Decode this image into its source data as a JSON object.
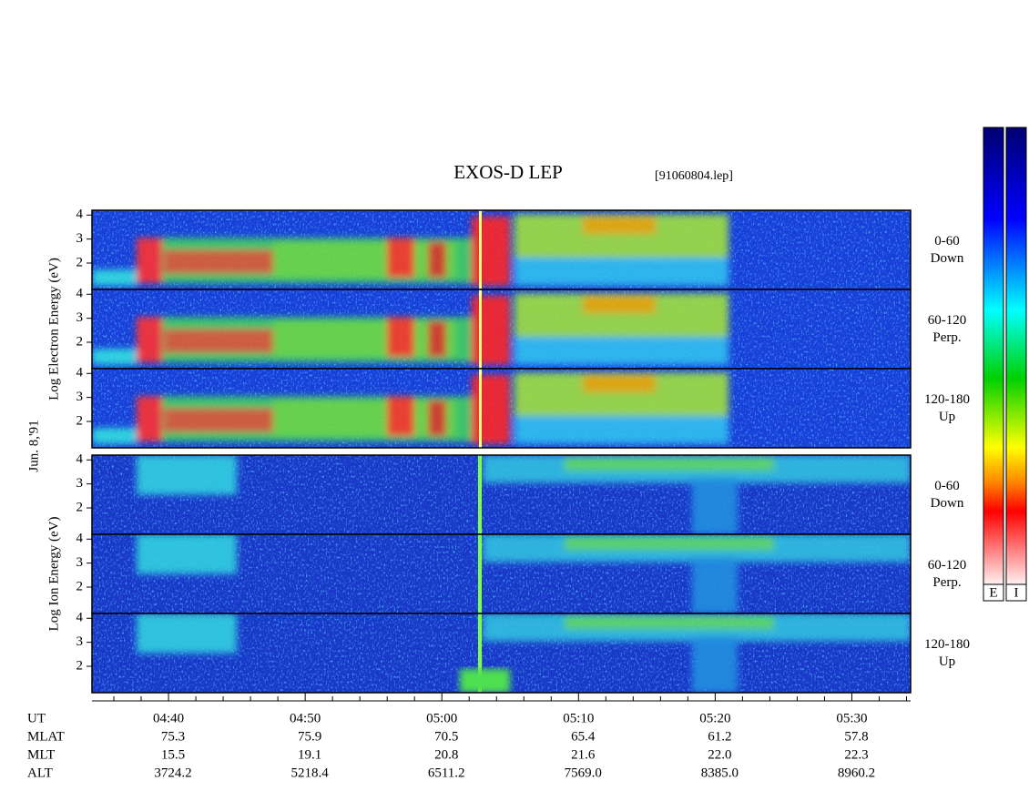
{
  "chart_data": {
    "type": "spectrogram",
    "title": "EXOS-D LEP",
    "file": "[91060804.lep]",
    "date": "Jun. 8,'91",
    "groups": [
      {
        "ylabel": "Log Electron Energy (eV)",
        "panels": [
          {
            "angle": "0-60",
            "direction": "Down"
          },
          {
            "angle": "60-120",
            "direction": "Perp."
          },
          {
            "angle": "120-180",
            "direction": "Up"
          }
        ]
      },
      {
        "ylabel": "Log Ion Energy (eV)",
        "panels": [
          {
            "angle": "0-60",
            "direction": "Down"
          },
          {
            "angle": "60-120",
            "direction": "Perp."
          },
          {
            "angle": "120-180",
            "direction": "Up"
          }
        ]
      }
    ],
    "ylim": [
      0.9,
      4.2
    ],
    "yticks": [
      2,
      3,
      4
    ],
    "xlim": [
      274.4,
      334.3
    ],
    "xticks": [
      {
        "value": 280,
        "label": "04:40"
      },
      {
        "value": 290,
        "label": "04:50"
      },
      {
        "value": 300,
        "label": "05:00"
      },
      {
        "value": 310,
        "label": "05:10"
      },
      {
        "value": 320,
        "label": "05:20"
      },
      {
        "value": 330,
        "label": "05:30"
      }
    ],
    "minor_xticks": [
      276,
      278,
      282,
      284,
      286,
      288,
      292,
      294,
      296,
      298,
      302,
      304,
      306,
      308,
      312,
      314,
      316,
      318,
      322,
      324,
      326,
      328,
      332,
      334
    ],
    "x_label": "UT",
    "ephemeris": [
      {
        "label": "MLAT",
        "values": [
          "75.3",
          "75.9",
          "70.5",
          "65.4",
          "61.2",
          "57.8"
        ]
      },
      {
        "label": "MLT",
        "values": [
          "15.5",
          "19.1",
          "20.8",
          "21.6",
          "22.0",
          "22.3"
        ]
      },
      {
        "label": "ALT",
        "values": [
          "3724.2",
          "5218.4",
          "6511.2",
          "7569.0",
          "8385.0",
          "8960.2"
        ]
      }
    ],
    "colorbars": [
      "E",
      "I"
    ]
  }
}
